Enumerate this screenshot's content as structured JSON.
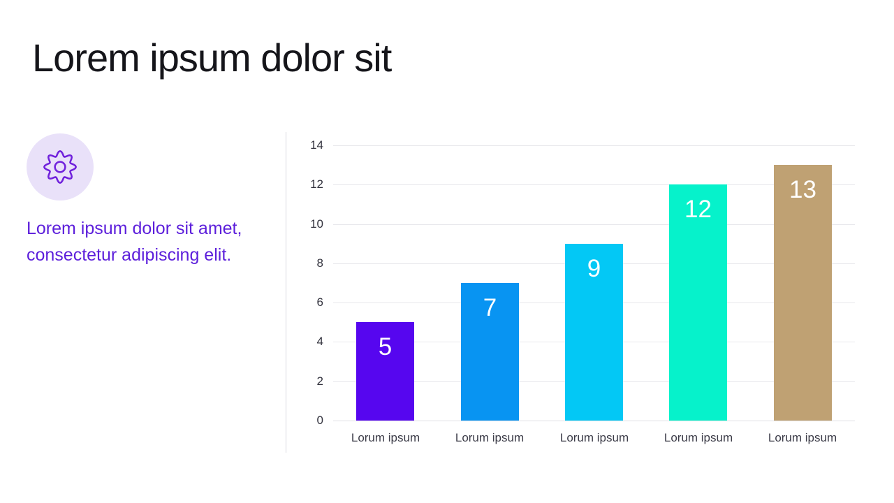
{
  "slide": {
    "title": "Lorem ipsum dolor sit",
    "lead_lines": [
      "Lorem ipsum dolor sit amet,",
      "consectetur adipiscing elit."
    ]
  },
  "icon": {
    "name": "gear-icon",
    "circle_bg": "#e9e1f9",
    "stroke_color": "#7123dc"
  },
  "colors": {
    "background": "#ffffff",
    "title_text": "#15151a",
    "accent_text": "#5c1edb",
    "divider": "#d9d9df",
    "gridline": "#e8e8ec",
    "axis_baseline": "#e0e0e4",
    "y_axis_text": "#33333e",
    "x_axis_text": "#3c3c48",
    "value_label_text": "#ffffff"
  },
  "chart_data": {
    "type": "bar",
    "title": "",
    "categories": [
      "Lorum ipsum",
      "Lorum ipsum",
      "Lorum ipsum",
      "Lorum ipsum",
      "Lorum ipsum"
    ],
    "values": [
      5,
      7,
      9,
      12,
      13
    ],
    "bar_colors": [
      "#5606ef",
      "#0894f2",
      "#03c8f5",
      "#06f2cb",
      "#bfa173"
    ],
    "ylim": [
      0,
      14
    ],
    "yticks": [
      0,
      2,
      4,
      6,
      8,
      10,
      12,
      14
    ],
    "grid": true,
    "legend": false,
    "value_label_position": "inside-top"
  }
}
